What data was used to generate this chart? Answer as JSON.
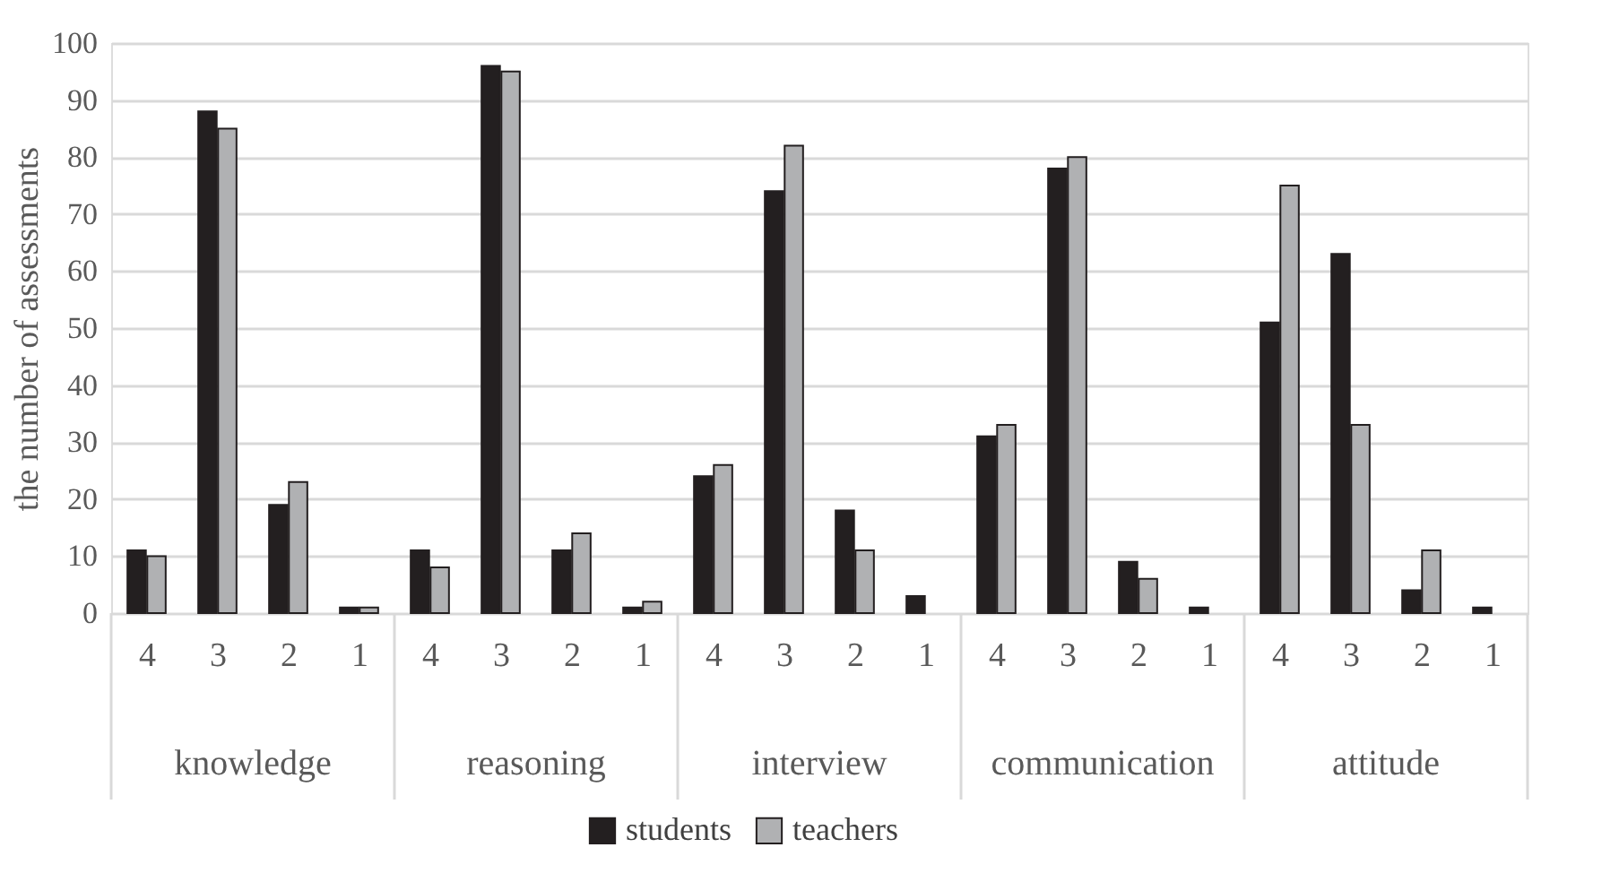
{
  "chart_data": {
    "type": "bar",
    "ylabel": "the number of assessments",
    "categories": [
      "4",
      "3",
      "2",
      "1",
      "4",
      "3",
      "2",
      "1",
      "4",
      "3",
      "2",
      "1",
      "4",
      "3",
      "2",
      "1",
      "4",
      "3",
      "2",
      "1"
    ],
    "annotations": [
      "knowledge",
      "reasoning",
      "interview",
      "communication",
      "attitude"
    ],
    "series": [
      {
        "name": "students",
        "color": "#231f20",
        "values": [
          11,
          88,
          19,
          1,
          11,
          96,
          11,
          1,
          24,
          74,
          18,
          3,
          31,
          78,
          9,
          1,
          51,
          63,
          4,
          1
        ]
      },
      {
        "name": "teachers",
        "color": "#b0b1b3",
        "values": [
          10,
          85,
          23,
          1,
          8,
          95,
          14,
          2,
          26,
          82,
          11,
          null,
          33,
          80,
          6,
          null,
          75,
          33,
          11,
          null
        ]
      }
    ],
    "ylim": [
      0,
      100
    ],
    "yticks": [
      0,
      10,
      20,
      30,
      40,
      50,
      60,
      70,
      80,
      90,
      100
    ],
    "grid": "y",
    "legend": "bottom"
  }
}
